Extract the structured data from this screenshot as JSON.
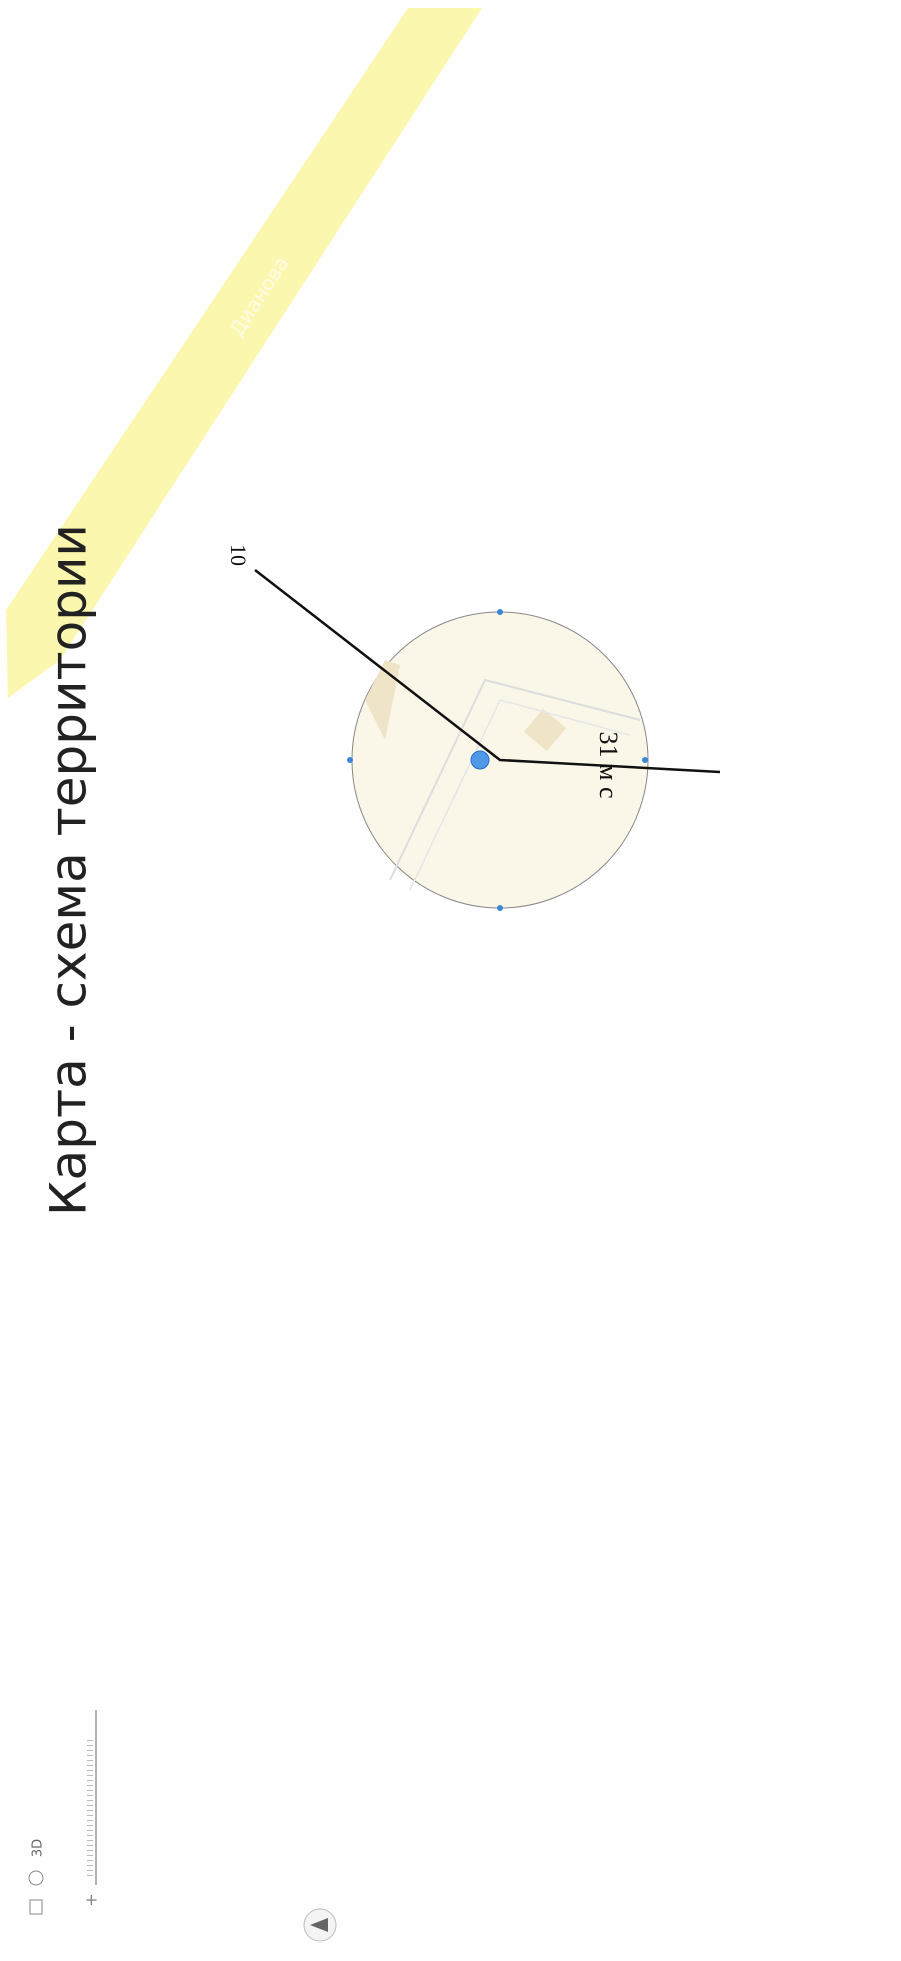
{
  "title": "Карта - схема территории",
  "map": {
    "street_label": "Дианова",
    "point_label": "10",
    "distance_label": "31 м с"
  },
  "controls": {
    "view_3d": "3D"
  }
}
